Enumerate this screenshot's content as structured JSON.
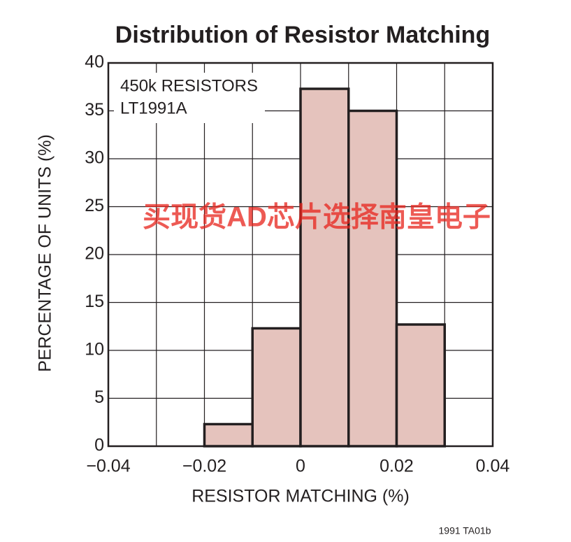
{
  "chart_data": {
    "type": "histogram",
    "title": "Distribution of Resistor Matching",
    "xlabel": "RESISTOR MATCHING (%)",
    "ylabel": "PERCENTAGE OF UNITS (%)",
    "annotations": [
      "450k RESISTORS",
      "LT1991A"
    ],
    "footnote": "1991 TA01b",
    "watermark": "买现货AD芯片选择南皇电子",
    "bins": [
      -0.02,
      -0.01,
      0,
      0.01,
      0.02,
      0.03
    ],
    "values": [
      2.3,
      12.3,
      37.3,
      35,
      12.7
    ],
    "color": "#e5c3bd",
    "xlim": [
      -0.04,
      0.04
    ],
    "xticks": [
      {
        "value": -0.04,
        "label": "−0.04"
      },
      {
        "value": -0.02,
        "label": "−0.02"
      },
      0,
      0.02,
      0.04
    ],
    "xminor": [
      -0.03,
      -0.01,
      0.01,
      0.03
    ],
    "ylim": [
      0,
      40
    ],
    "yticks": [
      0,
      5,
      10,
      15,
      20,
      25,
      30,
      35,
      40
    ],
    "grid": true
  }
}
